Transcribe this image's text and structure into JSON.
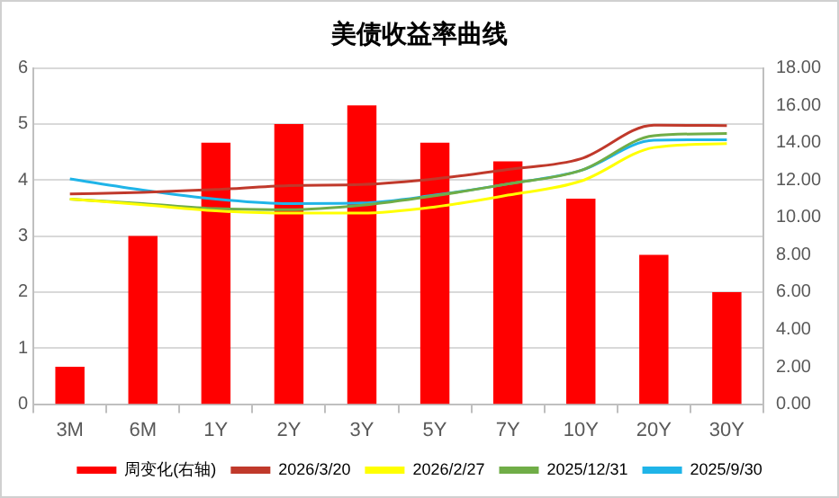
{
  "chart_data": {
    "type": "bar",
    "title": "美债收益率曲线",
    "categories": [
      "3M",
      "6M",
      "1Y",
      "2Y",
      "3Y",
      "5Y",
      "7Y",
      "10Y",
      "20Y",
      "30Y"
    ],
    "series": [
      {
        "name": "周变化(右轴)",
        "axis": "y2",
        "color": "#ff0000",
        "values": [
          2,
          9,
          14,
          15,
          16,
          14,
          13,
          11,
          8,
          6
        ]
      },
      {
        "name": "2026/3/20",
        "type": "line",
        "color": "#c0392b",
        "values": [
          3.75,
          3.78,
          3.83,
          3.9,
          3.92,
          4.02,
          4.19,
          4.38,
          4.98,
          4.97
        ]
      },
      {
        "name": "2026/2/27",
        "type": "line",
        "color": "#ffff00",
        "values": [
          3.66,
          3.56,
          3.45,
          3.41,
          3.41,
          3.52,
          3.73,
          3.98,
          4.58,
          4.65
        ]
      },
      {
        "name": "2025/12/31",
        "type": "line",
        "color": "#70ad47",
        "values": [
          3.66,
          3.58,
          3.49,
          3.47,
          3.55,
          3.72,
          3.93,
          4.17,
          4.79,
          4.83
        ]
      },
      {
        "name": "2025/9/30",
        "type": "line",
        "color": "#1fb4e8",
        "values": [
          4.02,
          3.82,
          3.66,
          3.58,
          3.59,
          3.73,
          3.93,
          4.17,
          4.71,
          4.72
        ]
      }
    ],
    "ylim": [
      0,
      6
    ],
    "yticks": [
      0,
      1,
      2,
      3,
      4,
      5,
      6
    ],
    "y2lim": [
      0,
      18
    ],
    "y2ticks": [
      {
        "value": 0,
        "label": "0.00"
      },
      {
        "value": 2,
        "label": "2.00"
      },
      {
        "value": 4,
        "label": "4.00"
      },
      {
        "value": 6,
        "label": "6.00"
      },
      {
        "value": 8,
        "label": "8.00"
      },
      {
        "value": 10,
        "label": "10.00"
      },
      {
        "value": 12,
        "label": "12.00"
      },
      {
        "value": 14,
        "label": "14.00"
      },
      {
        "value": 16,
        "label": "16.00"
      },
      {
        "value": 18,
        "label": "18.00"
      }
    ],
    "grid": "y",
    "legend": "bottom",
    "marker": "none",
    "line_style": "solid"
  }
}
